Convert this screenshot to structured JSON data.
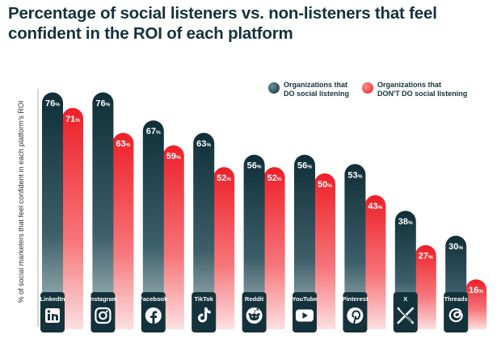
{
  "chart_data": {
    "type": "bar",
    "title": "Percentage of social listeners vs. non-listeners that feel confident in the ROI of each platform",
    "xlabel": "",
    "ylabel": "% of social marketers that feel confident in each platform's ROI",
    "ylim": [
      0,
      80
    ],
    "categories": [
      "LinkedIn",
      "Instagram",
      "Facebook",
      "TikTok",
      "Reddit",
      "YouTube",
      "Pinterest",
      "X",
      "Threads"
    ],
    "icons": [
      "linkedin-icon",
      "instagram-icon",
      "facebook-icon",
      "tiktok-icon",
      "reddit-icon",
      "youtube-icon",
      "pinterest-icon",
      "x-icon",
      "threads-icon"
    ],
    "unit_suffix": "%",
    "series": [
      {
        "name": "Organizations that DO social listening",
        "name_line1": "Organizations that",
        "name_line2": "DO social listening",
        "color": "#14323b",
        "values": [
          76,
          76,
          67,
          63,
          56,
          56,
          53,
          38,
          30
        ]
      },
      {
        "name": "Organizations that DON'T DO social listening",
        "name_line1": "Organizations that",
        "name_line2": "DON'T DO social listening",
        "color": "#f0262e",
        "values": [
          71,
          63,
          59,
          52,
          52,
          50,
          43,
          27,
          16
        ]
      }
    ],
    "legend_position": "top-right",
    "grid": false
  }
}
